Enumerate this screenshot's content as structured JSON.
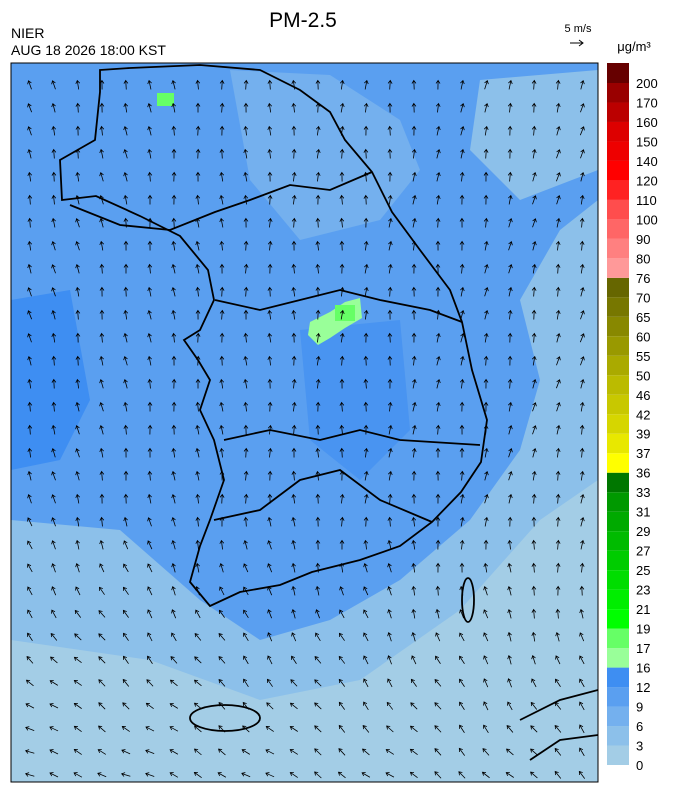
{
  "header": {
    "title": "PM-2.5",
    "agency": "NIER",
    "timestamp": "AUG 18 2026 18:00 KST",
    "wind_scale": "5 m/s"
  },
  "colorbar": {
    "unit": "μg/m³",
    "levels": [
      0,
      3,
      6,
      9,
      12,
      16,
      17,
      19,
      21,
      23,
      25,
      27,
      29,
      31,
      33,
      36,
      37,
      39,
      42,
      46,
      50,
      55,
      60,
      65,
      70,
      76,
      80,
      90,
      100,
      110,
      120,
      140,
      150,
      160,
      170,
      200
    ],
    "colors": [
      "#a3cde6",
      "#8cc0ea",
      "#74b0ee",
      "#5a9ff0",
      "#3e8ef2",
      "#99ff99",
      "#66ff66",
      "#00ff00",
      "#00ee00",
      "#00dd00",
      "#00cc00",
      "#00bb00",
      "#00aa00",
      "#009900",
      "#007700",
      "#ffff00",
      "#e8e800",
      "#d6d600",
      "#c8c800",
      "#bbbb00",
      "#aaaa00",
      "#999900",
      "#888800",
      "#777700",
      "#666600",
      "#ff9999",
      "#ff8080",
      "#ff6666",
      "#ff4d4d",
      "#ff2222",
      "#ff0000",
      "#ee0000",
      "#dd0000",
      "#bb0000",
      "#990000",
      "#660000"
    ]
  }
}
